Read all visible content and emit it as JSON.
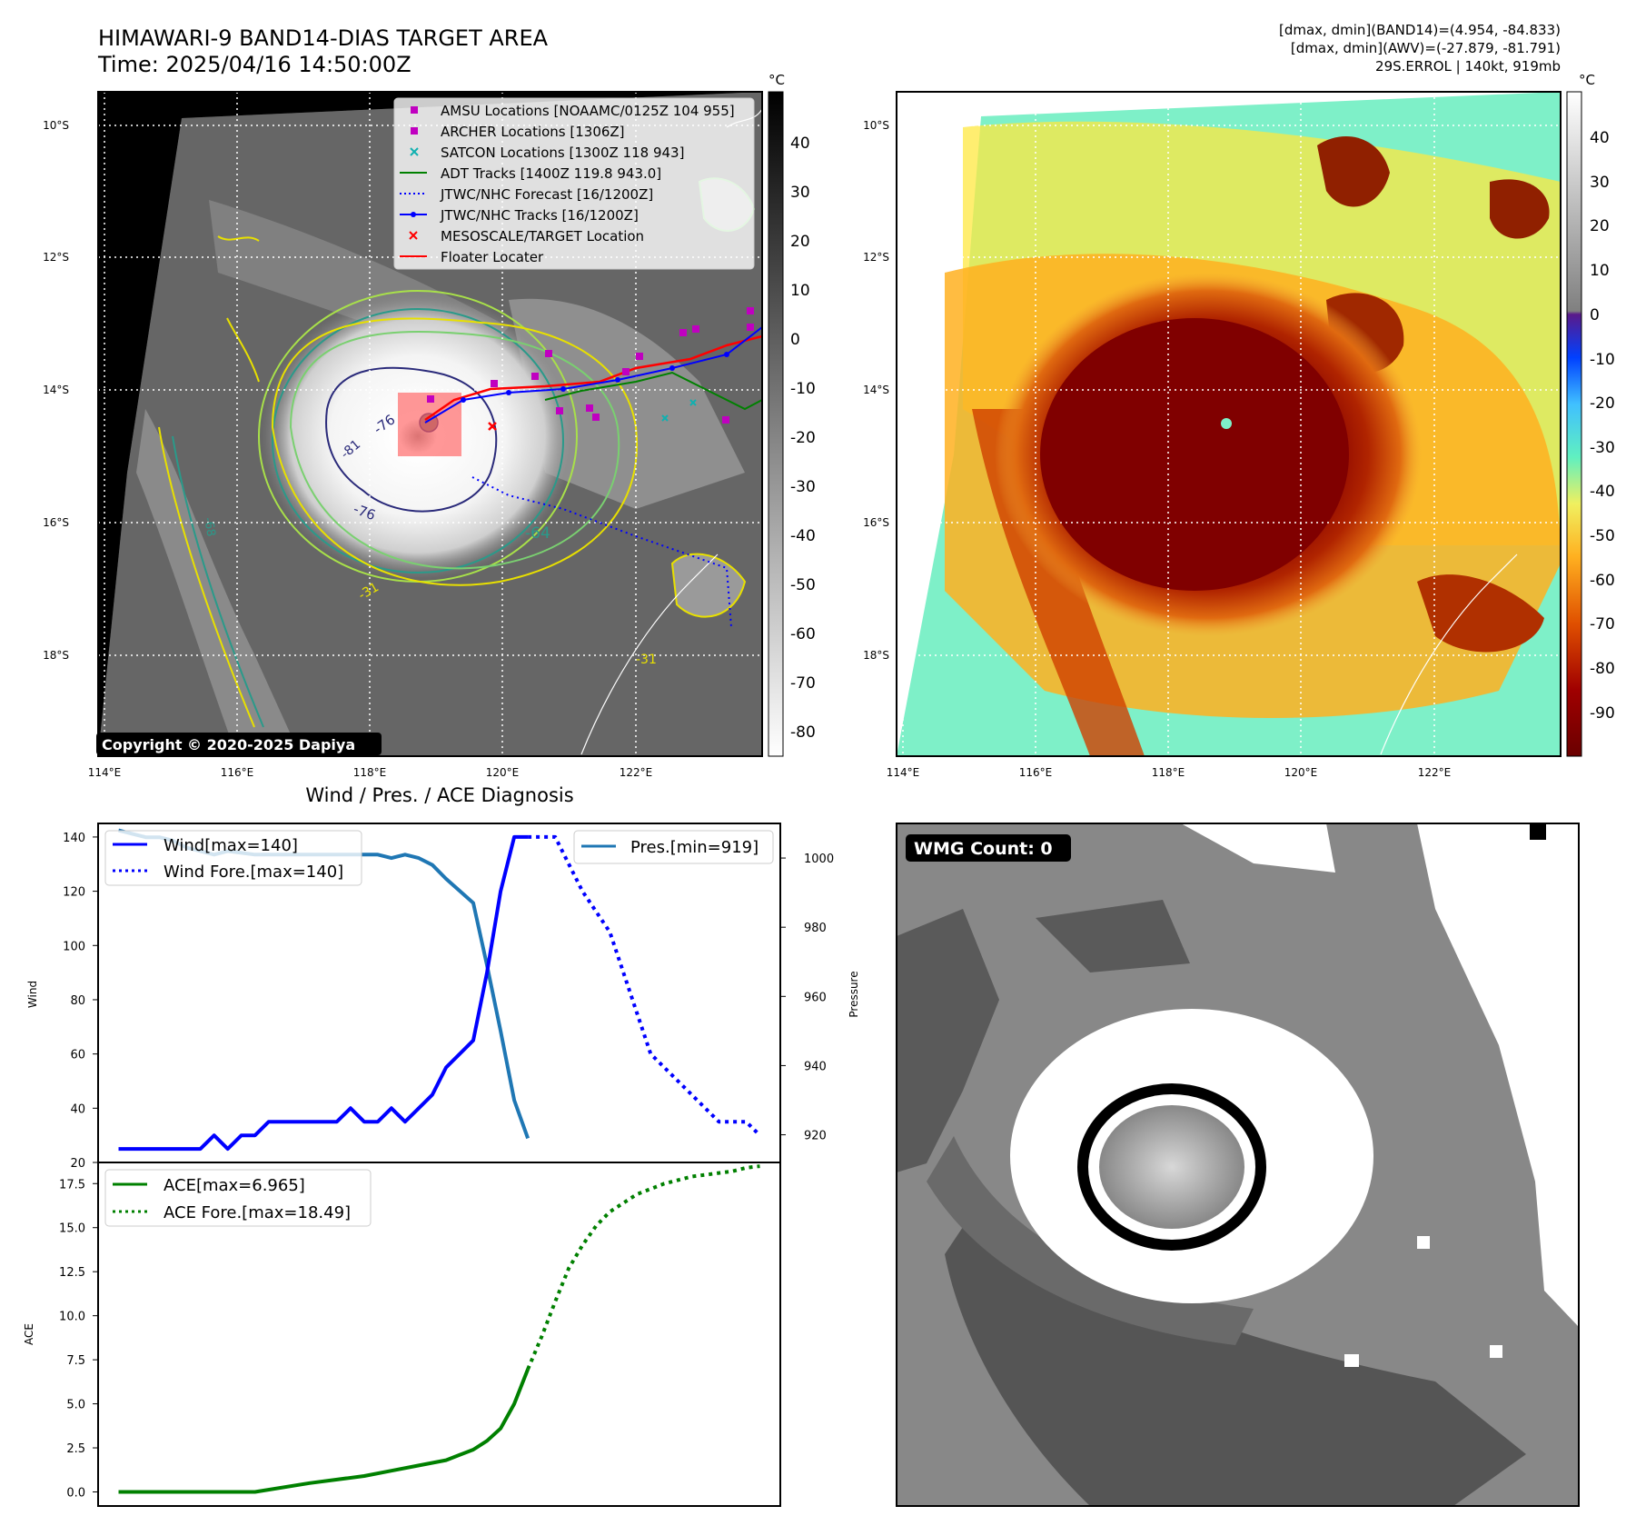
{
  "header": {
    "title": "HIMAWARI-9 BAND14-DIAS TARGET AREA",
    "time": "Time: 2025/04/16 14:50:00Z",
    "dmax_band14": "[dmax, dmin](BAND14)=(4.954, -84.833)",
    "dmax_awv": "[dmax, dmin](AWV)=(-27.879, -81.791)",
    "storm": "29S.ERROL | 140kt, 919mb"
  },
  "maps": {
    "lat_labels": [
      "10°S",
      "12°S",
      "14°S",
      "16°S",
      "18°S"
    ],
    "lon_labels": [
      "114°E",
      "116°E",
      "118°E",
      "120°E",
      "122°E"
    ],
    "unit": "°C",
    "copyright": "Copyright © 2020-2025 Dapiya",
    "contour_labels": [
      "-76",
      "-64",
      "-76",
      "-81",
      "-31",
      "-31",
      "-68"
    ],
    "colorbar_left_ticks": [
      "40",
      "30",
      "20",
      "10",
      "0",
      "-10",
      "-20",
      "-30",
      "-40",
      "-50",
      "-60",
      "-70",
      "-80"
    ],
    "colorbar_right_ticks": [
      "40",
      "30",
      "20",
      "10",
      "0",
      "-10",
      "-20",
      "-30",
      "-40",
      "-50",
      "-60",
      "-70",
      "-80",
      "-90"
    ],
    "legend": [
      {
        "label": "AMSU Locations [NOAAMC/0125Z 104 955]",
        "color": "#c000c0",
        "symbol": "square"
      },
      {
        "label": "ARCHER Locations [1306Z]",
        "color": "#c000c0",
        "symbol": "square"
      },
      {
        "label": "SATCON Locations [1300Z 118 943]",
        "color": "#10b0b0",
        "symbol": "x"
      },
      {
        "label": "ADT Tracks [1400Z 119.8 943.0]",
        "color": "#008000",
        "symbol": "line"
      },
      {
        "label": "JTWC/NHC Forecast [16/1200Z]",
        "color": "#0000ff",
        "symbol": "dotted"
      },
      {
        "label": "JTWC/NHC Tracks [16/1200Z]",
        "color": "#0000ff",
        "symbol": "line-dot"
      },
      {
        "label": "MESOSCALE/TARGET Location",
        "color": "#ff0000",
        "symbol": "x"
      },
      {
        "label": "Floater Locater",
        "color": "#ff0000",
        "symbol": "line"
      }
    ]
  },
  "chart_data": [
    {
      "type": "line",
      "title": "Wind / Pres. / ACE Diagnosis",
      "ylabel": "Wind",
      "ylim": [
        20,
        145
      ],
      "yticks": [
        20,
        40,
        60,
        80,
        100,
        120,
        140
      ],
      "y2label": "Pressure",
      "y2lim": [
        912,
        1010
      ],
      "y2ticks": [
        920,
        940,
        960,
        980,
        1000
      ],
      "legend_left": [
        "Wind[max=140]",
        "Wind Fore.[max=140]"
      ],
      "legend_right": [
        "Pres.[min=919]"
      ],
      "series": [
        {
          "name": "Wind[max=140]",
          "axis": "left",
          "style": "solid",
          "color": "#0000ff",
          "x": [
            0,
            6,
            7,
            8,
            9,
            10,
            11,
            12,
            14,
            16,
            17,
            18,
            19,
            20,
            21,
            22,
            23,
            24,
            26,
            27,
            28,
            29,
            30
          ],
          "values": [
            25,
            25,
            30,
            25,
            30,
            30,
            35,
            35,
            35,
            35,
            40,
            35,
            35,
            40,
            35,
            40,
            45,
            55,
            65,
            90,
            120,
            140,
            140
          ]
        },
        {
          "name": "Wind Fore.[max=140]",
          "axis": "left",
          "style": "dotted",
          "color": "#0000ff",
          "x": [
            30,
            32,
            33,
            34,
            36,
            37,
            38,
            39,
            41,
            42,
            43,
            44,
            46,
            47
          ],
          "values": [
            140,
            140,
            130,
            120,
            105,
            90,
            75,
            60,
            50,
            45,
            40,
            35,
            35,
            30
          ]
        },
        {
          "name": "Pres.[min=919]",
          "axis": "right",
          "style": "solid",
          "color": "#1f77b4",
          "x": [
            0,
            1,
            2,
            3,
            4,
            5,
            6,
            7,
            8,
            10,
            12,
            14,
            16,
            18,
            19,
            20,
            21,
            22,
            23,
            24,
            26,
            27,
            28,
            29,
            30
          ],
          "values": [
            1008,
            1007,
            1006,
            1006,
            1005,
            1003,
            1002,
            1001,
            1002,
            1001,
            1001,
            1001,
            1001,
            1001,
            1001,
            1000,
            1001,
            1000,
            998,
            994,
            987,
            969,
            950,
            930,
            919
          ]
        }
      ]
    },
    {
      "type": "line",
      "ylabel": "ACE",
      "ylim": [
        -0.8,
        18.7
      ],
      "yticks": [
        0.0,
        2.5,
        5.0,
        7.5,
        10.0,
        12.5,
        15.0,
        17.5
      ],
      "legend": [
        "ACE[max=6.965]",
        "ACE Fore.[max=18.49]"
      ],
      "series": [
        {
          "name": "ACE[max=6.965]",
          "style": "solid",
          "color": "#008000",
          "x": [
            0,
            10,
            14,
            18,
            20,
            22,
            24,
            25,
            26,
            27,
            28,
            29,
            30
          ],
          "values": [
            0,
            0,
            0.5,
            0.9,
            1.2,
            1.5,
            1.8,
            2.1,
            2.4,
            2.9,
            3.6,
            5.0,
            6.965
          ]
        },
        {
          "name": "ACE Fore.[max=18.49]",
          "style": "dotted",
          "color": "#008000",
          "x": [
            30,
            31,
            32,
            33,
            34,
            35,
            36,
            37,
            38,
            39,
            40,
            41,
            42,
            43,
            44,
            45,
            46,
            47
          ],
          "values": [
            6.965,
            8.8,
            10.8,
            12.7,
            14.0,
            15.1,
            15.9,
            16.4,
            16.9,
            17.2,
            17.5,
            17.7,
            17.9,
            18.0,
            18.1,
            18.2,
            18.4,
            18.49
          ]
        }
      ]
    }
  ],
  "wmg": {
    "label": "WMG Count: 0"
  },
  "colors": {
    "awv_core": "#7a0000",
    "awv_mid": "#e05a00",
    "awv_outer": "#7ef0c8",
    "wind": "#0000ff",
    "pressure": "#1f77b4",
    "ace": "#008000"
  }
}
